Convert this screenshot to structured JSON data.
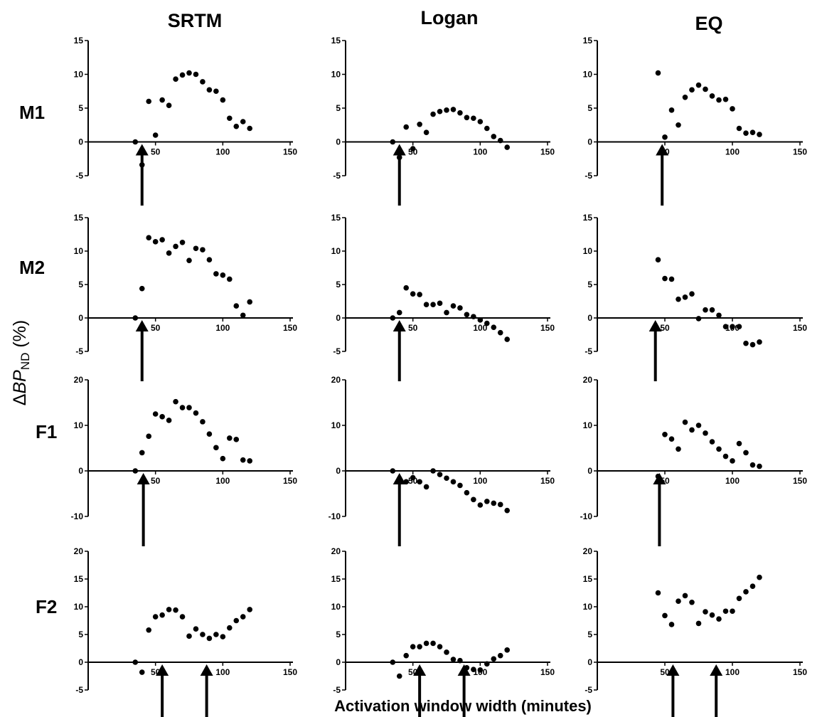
{
  "figure": {
    "column_titles": [
      "SRTM",
      "Logan",
      "EQ"
    ],
    "row_labels": [
      "M1",
      "M2",
      "F1",
      "F2"
    ],
    "ylabel": {
      "delta": "Δ",
      "main": "BP",
      "sub": "ND",
      "suffix": " (%)"
    },
    "xlabel": "Activation window width (minutes)",
    "colors": {
      "points": "#000000",
      "axes": "#000000",
      "background": "#ffffff"
    }
  },
  "chart_data": [
    {
      "type": "scatter",
      "method": "SRTM",
      "subject": "M1",
      "xlim": [
        0,
        150
      ],
      "ylim": [
        -5,
        15
      ],
      "xticks": [
        50,
        100,
        150
      ],
      "yticks": [
        -5,
        0,
        5,
        10,
        15
      ],
      "points": [
        [
          35,
          0
        ],
        [
          40,
          -3.4
        ],
        [
          45,
          6
        ],
        [
          50,
          1
        ],
        [
          55,
          6.2
        ],
        [
          60,
          5.4
        ],
        [
          65,
          9.3
        ],
        [
          70,
          9.9
        ],
        [
          75,
          10.2
        ],
        [
          80,
          10
        ],
        [
          85,
          8.9
        ],
        [
          90,
          7.7
        ],
        [
          95,
          7.5
        ],
        [
          100,
          6.2
        ],
        [
          105,
          3.5
        ],
        [
          110,
          2.3
        ],
        [
          115,
          3
        ],
        [
          120,
          2
        ]
      ],
      "arrows": [
        40
      ]
    },
    {
      "type": "scatter",
      "method": "Logan",
      "subject": "M1",
      "xlim": [
        0,
        150
      ],
      "ylim": [
        -5,
        15
      ],
      "xticks": [
        50,
        100,
        150
      ],
      "yticks": [
        -5,
        0,
        5,
        10,
        15
      ],
      "points": [
        [
          35,
          0
        ],
        [
          40,
          -2.3
        ],
        [
          45,
          2.2
        ],
        [
          50,
          -1
        ],
        [
          55,
          2.6
        ],
        [
          60,
          1.4
        ],
        [
          65,
          4.1
        ],
        [
          70,
          4.5
        ],
        [
          75,
          4.7
        ],
        [
          80,
          4.8
        ],
        [
          85,
          4.3
        ],
        [
          90,
          3.6
        ],
        [
          95,
          3.5
        ],
        [
          100,
          3
        ],
        [
          105,
          2
        ],
        [
          110,
          0.8
        ],
        [
          115,
          0.2
        ],
        [
          120,
          -0.8
        ]
      ],
      "arrows": [
        40
      ]
    },
    {
      "type": "scatter",
      "method": "EQ",
      "subject": "M1",
      "xlim": [
        0,
        150
      ],
      "ylim": [
        -5,
        15
      ],
      "xticks": [
        50,
        100,
        150
      ],
      "yticks": [
        -5,
        0,
        5,
        10,
        15
      ],
      "points": [
        [
          45,
          10.2
        ],
        [
          50,
          0.7
        ],
        [
          55,
          4.7
        ],
        [
          60,
          2.5
        ],
        [
          65,
          6.6
        ],
        [
          70,
          7.7
        ],
        [
          75,
          8.4
        ],
        [
          80,
          7.8
        ],
        [
          85,
          6.8
        ],
        [
          90,
          6.2
        ],
        [
          95,
          6.3
        ],
        [
          100,
          4.9
        ],
        [
          105,
          2
        ],
        [
          110,
          1.3
        ],
        [
          115,
          1.4
        ],
        [
          120,
          1.1
        ]
      ],
      "arrows": [
        48
      ]
    },
    {
      "type": "scatter",
      "method": "SRTM",
      "subject": "M2",
      "xlim": [
        0,
        150
      ],
      "ylim": [
        -5,
        15
      ],
      "xticks": [
        50,
        100,
        150
      ],
      "yticks": [
        -5,
        0,
        5,
        10,
        15
      ],
      "points": [
        [
          35,
          0
        ],
        [
          40,
          4.4
        ],
        [
          45,
          12
        ],
        [
          50,
          11.4
        ],
        [
          55,
          11.7
        ],
        [
          60,
          9.7
        ],
        [
          65,
          10.7
        ],
        [
          70,
          11.3
        ],
        [
          75,
          8.6
        ],
        [
          80,
          10.4
        ],
        [
          85,
          10.2
        ],
        [
          90,
          8.7
        ],
        [
          95,
          6.6
        ],
        [
          100,
          6.4
        ],
        [
          105,
          5.8
        ],
        [
          110,
          1.8
        ],
        [
          115,
          0.4
        ],
        [
          120,
          2.4
        ]
      ],
      "arrows": [
        40
      ]
    },
    {
      "type": "scatter",
      "method": "Logan",
      "subject": "M2",
      "xlim": [
        0,
        150
      ],
      "ylim": [
        -5,
        15
      ],
      "xticks": [
        50,
        100,
        150
      ],
      "yticks": [
        -5,
        0,
        5,
        10,
        15
      ],
      "points": [
        [
          35,
          0
        ],
        [
          40,
          0.8
        ],
        [
          45,
          4.5
        ],
        [
          50,
          3.6
        ],
        [
          55,
          3.5
        ],
        [
          60,
          2
        ],
        [
          65,
          2
        ],
        [
          70,
          2.2
        ],
        [
          75,
          0.8
        ],
        [
          80,
          1.8
        ],
        [
          85,
          1.5
        ],
        [
          90,
          0.5
        ],
        [
          95,
          0.2
        ],
        [
          100,
          -0.3
        ],
        [
          105,
          -0.8
        ],
        [
          110,
          -1.4
        ],
        [
          115,
          -2.2
        ],
        [
          120,
          -3.2
        ]
      ],
      "arrows": [
        40
      ]
    },
    {
      "type": "scatter",
      "method": "EQ",
      "subject": "M2",
      "xlim": [
        0,
        150
      ],
      "ylim": [
        -5,
        15
      ],
      "xticks": [
        50,
        100,
        150
      ],
      "yticks": [
        -5,
        0,
        5,
        10,
        15
      ],
      "points": [
        [
          45,
          8.7
        ],
        [
          50,
          5.9
        ],
        [
          55,
          5.8
        ],
        [
          60,
          2.8
        ],
        [
          65,
          3.1
        ],
        [
          70,
          3.6
        ],
        [
          75,
          -0.1
        ],
        [
          80,
          1.2
        ],
        [
          85,
          1.2
        ],
        [
          90,
          0.4
        ],
        [
          95,
          -1.3
        ],
        [
          100,
          -1.3
        ],
        [
          105,
          -1.3
        ],
        [
          110,
          -3.8
        ],
        [
          115,
          -4
        ],
        [
          120,
          -3.6
        ]
      ],
      "arrows": [
        43
      ]
    },
    {
      "type": "scatter",
      "method": "SRTM",
      "subject": "F1",
      "xlim": [
        0,
        150
      ],
      "ylim": [
        -10,
        20
      ],
      "xticks": [
        50,
        100,
        150
      ],
      "yticks": [
        -10,
        0,
        10,
        20
      ],
      "points": [
        [
          35,
          0
        ],
        [
          40,
          4
        ],
        [
          45,
          7.6
        ],
        [
          50,
          12.5
        ],
        [
          55,
          11.9
        ],
        [
          60,
          11.1
        ],
        [
          65,
          15.2
        ],
        [
          70,
          13.9
        ],
        [
          75,
          13.9
        ],
        [
          80,
          12.7
        ],
        [
          85,
          10.8
        ],
        [
          90,
          8.1
        ],
        [
          95,
          5.1
        ],
        [
          100,
          2.7
        ],
        [
          105,
          7.2
        ],
        [
          110,
          6.9
        ],
        [
          115,
          2.4
        ],
        [
          120,
          2.2
        ]
      ],
      "arrows": [
        41
      ]
    },
    {
      "type": "scatter",
      "method": "Logan",
      "subject": "F1",
      "xlim": [
        0,
        150
      ],
      "ylim": [
        -10,
        20
      ],
      "xticks": [
        50,
        100,
        150
      ],
      "yticks": [
        -10,
        0,
        10,
        20
      ],
      "points": [
        [
          35,
          0
        ],
        [
          40,
          -1.7
        ],
        [
          45,
          -2.4
        ],
        [
          50,
          -1.5
        ],
        [
          55,
          -2.4
        ],
        [
          60,
          -3.5
        ],
        [
          65,
          0
        ],
        [
          70,
          -0.8
        ],
        [
          75,
          -1.6
        ],
        [
          80,
          -2.4
        ],
        [
          85,
          -3.2
        ],
        [
          90,
          -4.8
        ],
        [
          95,
          -6.3
        ],
        [
          100,
          -7.5
        ],
        [
          105,
          -6.7
        ],
        [
          110,
          -7.1
        ],
        [
          115,
          -7.4
        ],
        [
          120,
          -8.7
        ]
      ],
      "arrows": [
        40
      ]
    },
    {
      "type": "scatter",
      "method": "EQ",
      "subject": "F1",
      "xlim": [
        0,
        150
      ],
      "ylim": [
        -10,
        20
      ],
      "xticks": [
        50,
        100,
        150
      ],
      "yticks": [
        -10,
        0,
        10,
        20
      ],
      "points": [
        [
          45,
          -1.2
        ],
        [
          50,
          8
        ],
        [
          55,
          7
        ],
        [
          60,
          4.8
        ],
        [
          65,
          10.7
        ],
        [
          70,
          9
        ],
        [
          75,
          10
        ],
        [
          80,
          8.3
        ],
        [
          85,
          6.4
        ],
        [
          90,
          4.8
        ],
        [
          95,
          3.2
        ],
        [
          100,
          2.2
        ],
        [
          105,
          6
        ],
        [
          110,
          4
        ],
        [
          115,
          1.3
        ],
        [
          120,
          1
        ]
      ],
      "arrows": [
        46
      ]
    },
    {
      "type": "scatter",
      "method": "SRTM",
      "subject": "F2",
      "xlim": [
        0,
        150
      ],
      "ylim": [
        -5,
        20
      ],
      "xticks": [
        50,
        100,
        150
      ],
      "yticks": [
        -5,
        0,
        5,
        10,
        15,
        20
      ],
      "points": [
        [
          35,
          0
        ],
        [
          40,
          -1.8
        ],
        [
          45,
          5.8
        ],
        [
          50,
          8.2
        ],
        [
          55,
          8.5
        ],
        [
          60,
          9.5
        ],
        [
          65,
          9.4
        ],
        [
          70,
          8.2
        ],
        [
          75,
          4.7
        ],
        [
          80,
          6
        ],
        [
          85,
          5
        ],
        [
          90,
          4.3
        ],
        [
          95,
          5
        ],
        [
          100,
          4.6
        ],
        [
          105,
          6.2
        ],
        [
          110,
          7.5
        ],
        [
          115,
          8.2
        ],
        [
          120,
          9.5
        ]
      ],
      "arrows": [
        55,
        88
      ]
    },
    {
      "type": "scatter",
      "method": "Logan",
      "subject": "F2",
      "xlim": [
        0,
        150
      ],
      "ylim": [
        -5,
        20
      ],
      "xticks": [
        50,
        100,
        150
      ],
      "yticks": [
        -5,
        0,
        5,
        10,
        15,
        20
      ],
      "points": [
        [
          35,
          0
        ],
        [
          40,
          -2.5
        ],
        [
          45,
          1.2
        ],
        [
          50,
          2.8
        ],
        [
          55,
          2.8
        ],
        [
          60,
          3.4
        ],
        [
          65,
          3.4
        ],
        [
          70,
          2.8
        ],
        [
          75,
          1.8
        ],
        [
          80,
          0.5
        ],
        [
          85,
          0.3
        ],
        [
          90,
          -1
        ],
        [
          95,
          -1.3
        ],
        [
          100,
          -1.4
        ],
        [
          105,
          -0.3
        ],
        [
          110,
          0.6
        ],
        [
          115,
          1.2
        ],
        [
          120,
          2.2
        ]
      ],
      "arrows": [
        55,
        88
      ]
    },
    {
      "type": "scatter",
      "method": "EQ",
      "subject": "F2",
      "xlim": [
        0,
        150
      ],
      "ylim": [
        -5,
        20
      ],
      "xticks": [
        50,
        100,
        150
      ],
      "yticks": [
        -5,
        0,
        5,
        10,
        15,
        20
      ],
      "points": [
        [
          45,
          12.5
        ],
        [
          50,
          8.4
        ],
        [
          55,
          6.8
        ],
        [
          60,
          11
        ],
        [
          65,
          12
        ],
        [
          70,
          10.8
        ],
        [
          75,
          7
        ],
        [
          80,
          9.1
        ],
        [
          85,
          8.5
        ],
        [
          90,
          7.8
        ],
        [
          95,
          9.2
        ],
        [
          100,
          9.2
        ],
        [
          105,
          11.5
        ],
        [
          110,
          12.7
        ],
        [
          115,
          13.7
        ],
        [
          120,
          15.3
        ]
      ],
      "arrows": [
        56,
        88
      ]
    }
  ]
}
